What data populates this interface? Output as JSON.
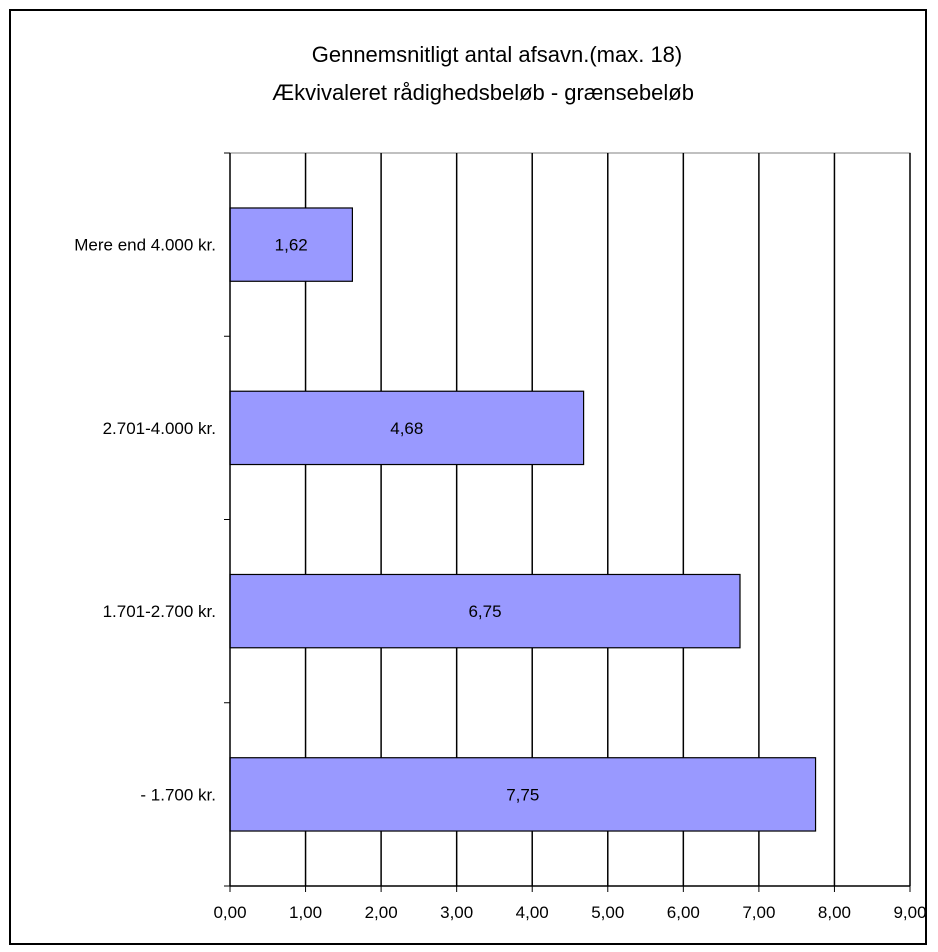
{
  "chart_data": {
    "type": "bar",
    "orientation": "horizontal",
    "title": "Gennemsnitligt antal afsavn.(max. 18)",
    "subtitle": "Ækvivaleret rådighedsbeløb - grænsebeløb",
    "categories": [
      "Mere end 4.000 kr.",
      "2.701-4.000 kr.",
      "1.701-2.700 kr.",
      "- 1.700 kr."
    ],
    "values": [
      1.62,
      4.68,
      6.75,
      7.75
    ],
    "data_labels": [
      "1,62",
      "4,68",
      "6,75",
      "7,75"
    ],
    "x_ticks": [
      "0,00",
      "1,00",
      "2,00",
      "3,00",
      "4,00",
      "5,00",
      "6,00",
      "7,00",
      "8,00",
      "9,00"
    ],
    "xlim": [
      0,
      9
    ],
    "xlabel": "",
    "ylabel": "",
    "grid": true,
    "legend": "none",
    "bar_color": "#9999ff"
  }
}
